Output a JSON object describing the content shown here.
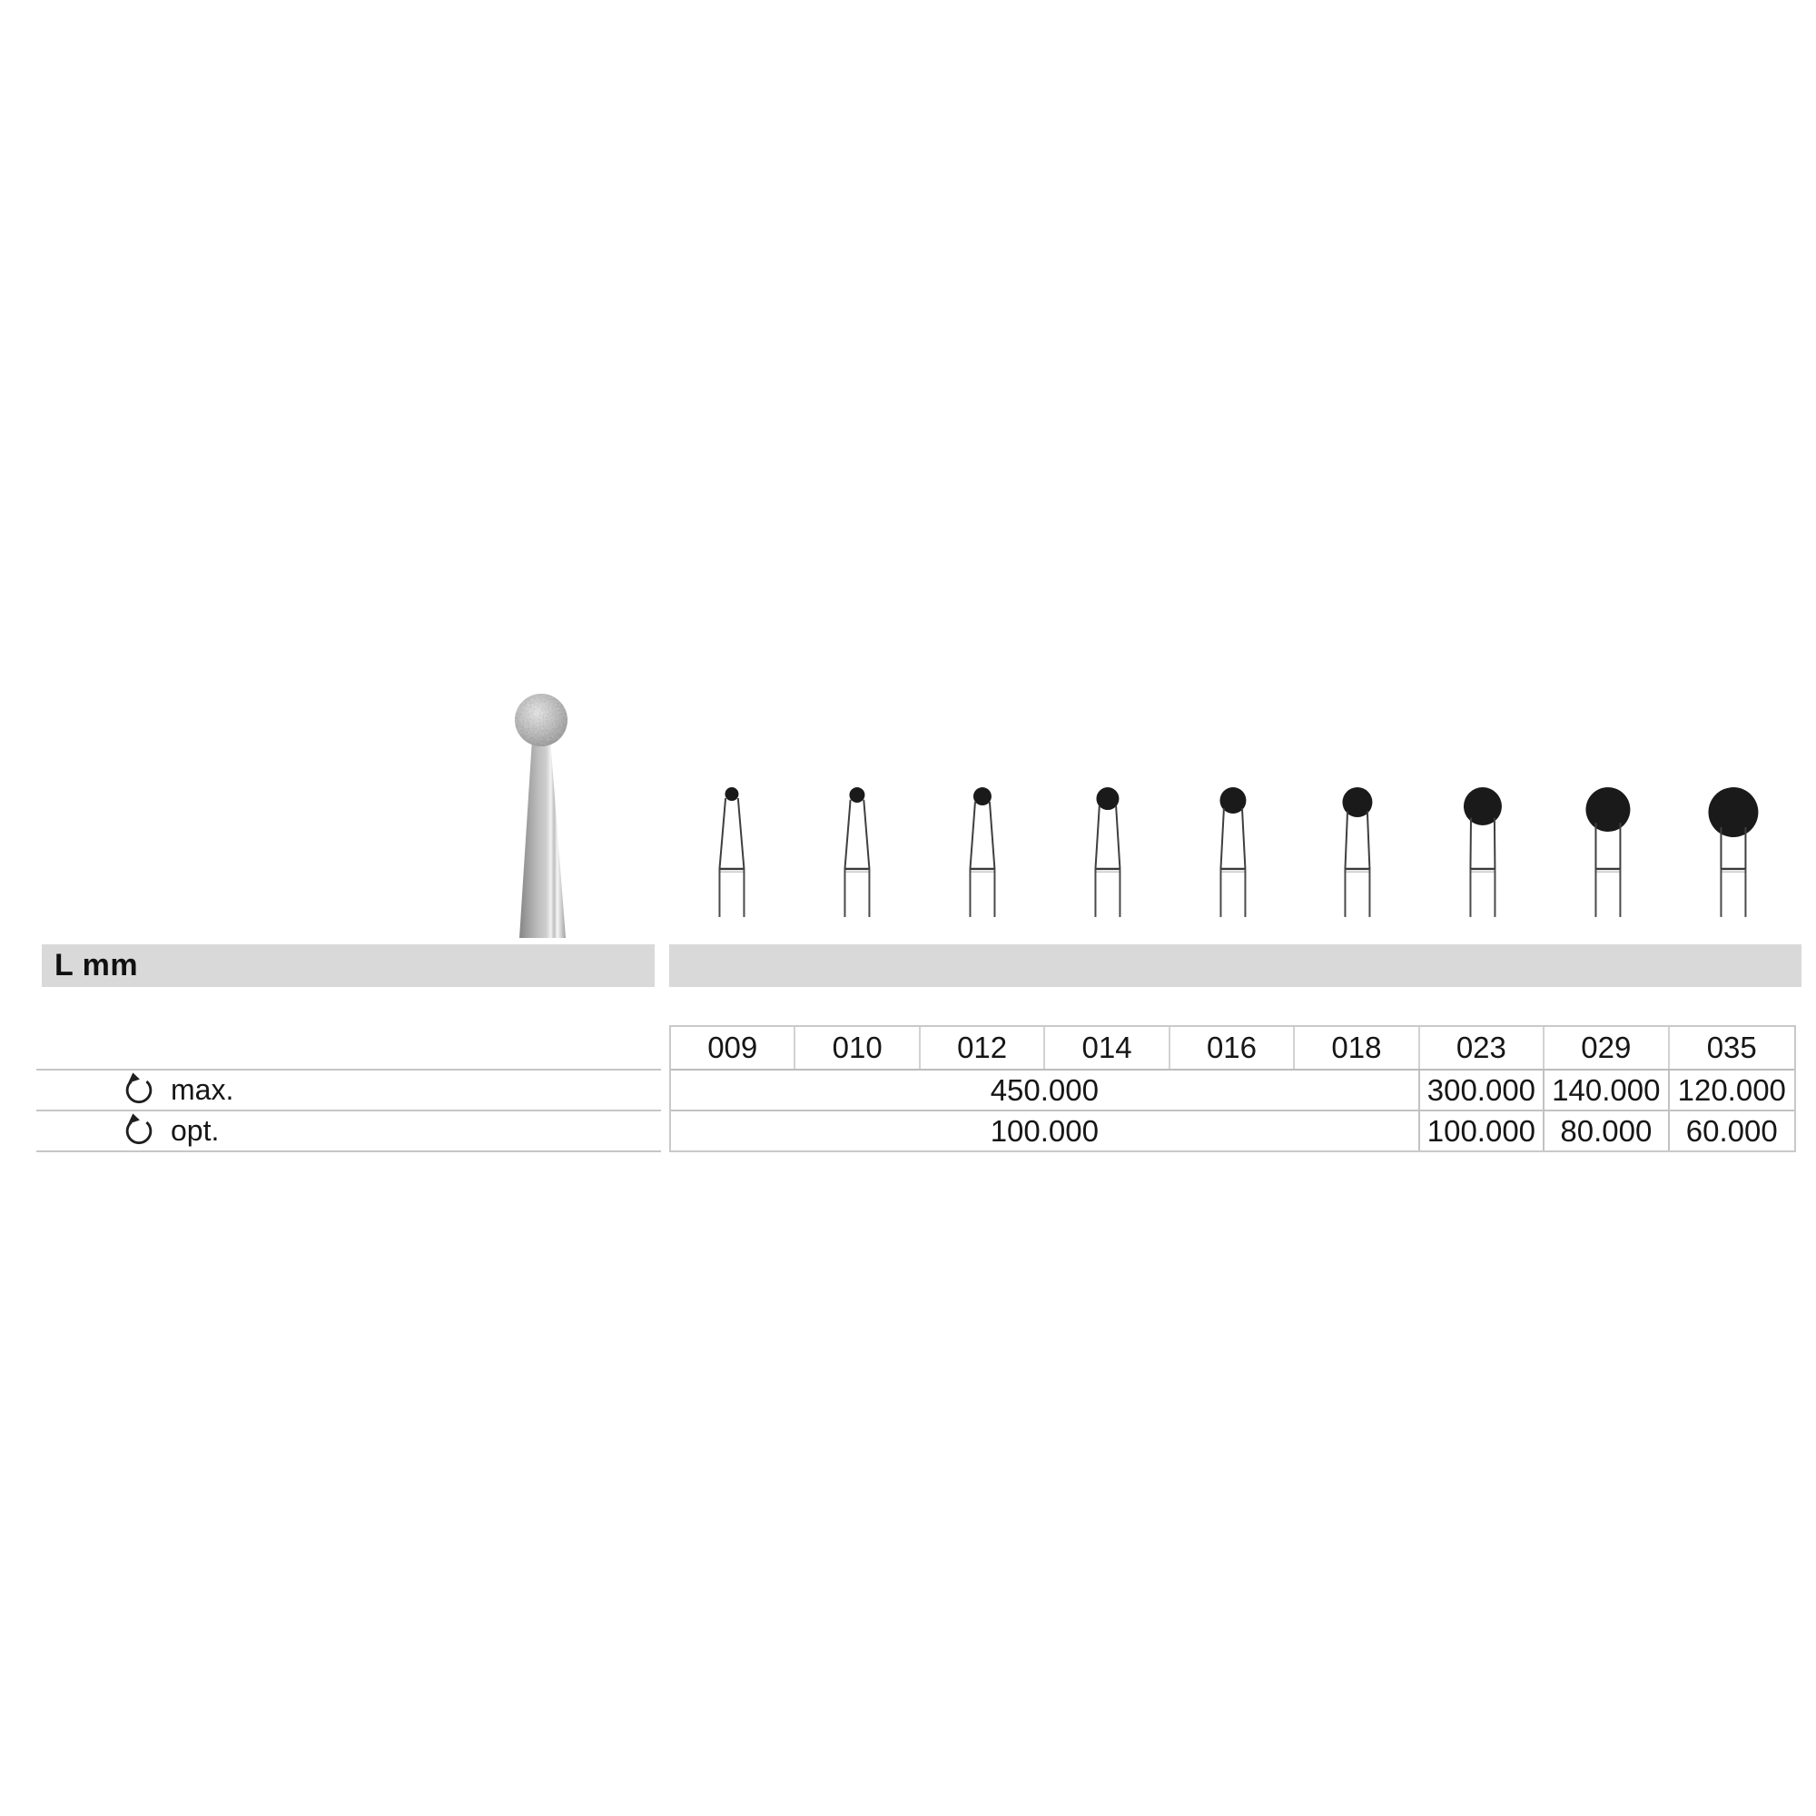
{
  "label_bar": {
    "label": "L mm"
  },
  "photo": {
    "name": "round-diamond-bur-photo"
  },
  "bur_figures": {
    "sizes": [
      "009",
      "010",
      "012",
      "014",
      "016",
      "018",
      "023",
      "029",
      "035"
    ],
    "ball_radii": [
      7.5,
      8.5,
      10,
      12.5,
      14.5,
      16.5,
      21,
      24.5,
      27.5
    ]
  },
  "spec_table": {
    "columns": [
      "009",
      "010",
      "012",
      "014",
      "016",
      "018",
      "023",
      "029",
      "035"
    ],
    "rows": [
      {
        "icon": "rotation-speed-icon",
        "label": "max.",
        "merged_value": "450.000",
        "merged_span": 6,
        "values": [
          "300.000",
          "140.000",
          "120.000"
        ]
      },
      {
        "icon": "rotation-speed-icon",
        "label": "opt.",
        "merged_value": "100.000",
        "merged_span": 6,
        "values": [
          "100.000",
          "80.000",
          "60.000"
        ]
      }
    ]
  },
  "colors": {
    "band_gray": "#d9d9d9",
    "table_border": "#c2c2c2",
    "figure_black": "#1a1a1a",
    "text": "#161616"
  }
}
